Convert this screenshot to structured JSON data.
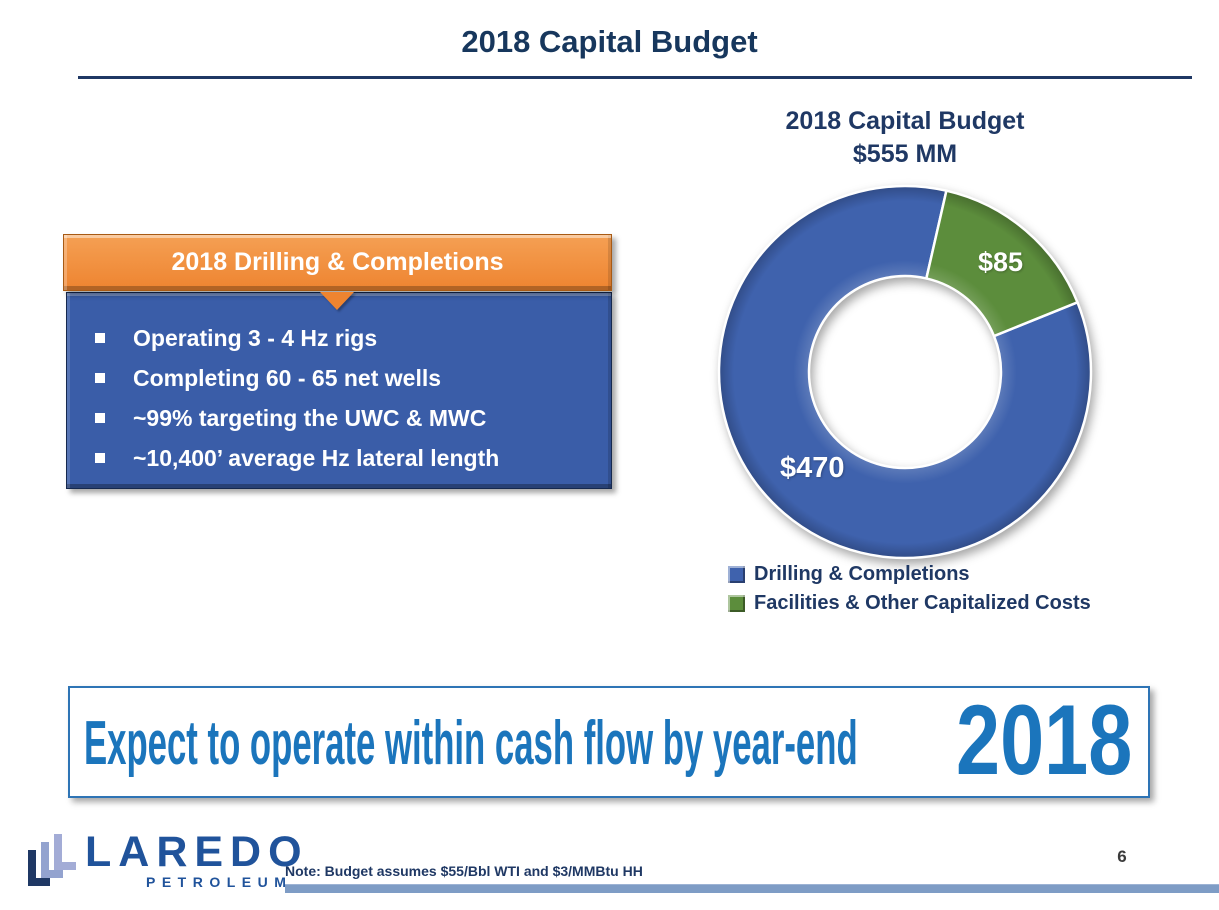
{
  "slide": {
    "title": "2018 Capital Budget",
    "page_number": "6",
    "footnote": "Note: Budget assumes $55/Bbl WTI and $3/MMBtu HH"
  },
  "info_box": {
    "header": "2018 Drilling & Completions",
    "bullets": [
      "Operating 3 - 4 Hz rigs",
      "Completing 60 - 65 net wells",
      "~99% targeting the UWC & MWC",
      "~10,400’ average Hz lateral length"
    ]
  },
  "chart_data": {
    "type": "pie",
    "donut": true,
    "title": "2018 Capital Budget",
    "subtitle": "$555 MM",
    "total": 555,
    "units": "$MM",
    "categories": [
      "Drilling & Completions",
      "Facilities & Other Capitalized Costs"
    ],
    "values": [
      470,
      85
    ],
    "value_labels": [
      "$470",
      "$85"
    ],
    "colors": [
      "#3F62AD",
      "#5C8D3C"
    ],
    "rotation_deg": 68,
    "legend_position": "bottom-left"
  },
  "banner": {
    "text": "Expect to operate within cash flow by year-end",
    "year": "2018"
  },
  "logo": {
    "name": "LAREDO",
    "subtitle": "PETROLEUM"
  },
  "theme": {
    "title_navy": "#17375D",
    "navy": "#1F3864",
    "orange": "#EE8430",
    "orange_light": "#F5A054",
    "box_blue": "#3A5DA8",
    "banner_blue": "#1B75BC",
    "banner_border": "#2E74B5",
    "footer_bar": "#7E9CC5",
    "logo_blue": "#20539B",
    "logo_light": "#A3ACD6",
    "logo_mid": "#93A3CF"
  }
}
